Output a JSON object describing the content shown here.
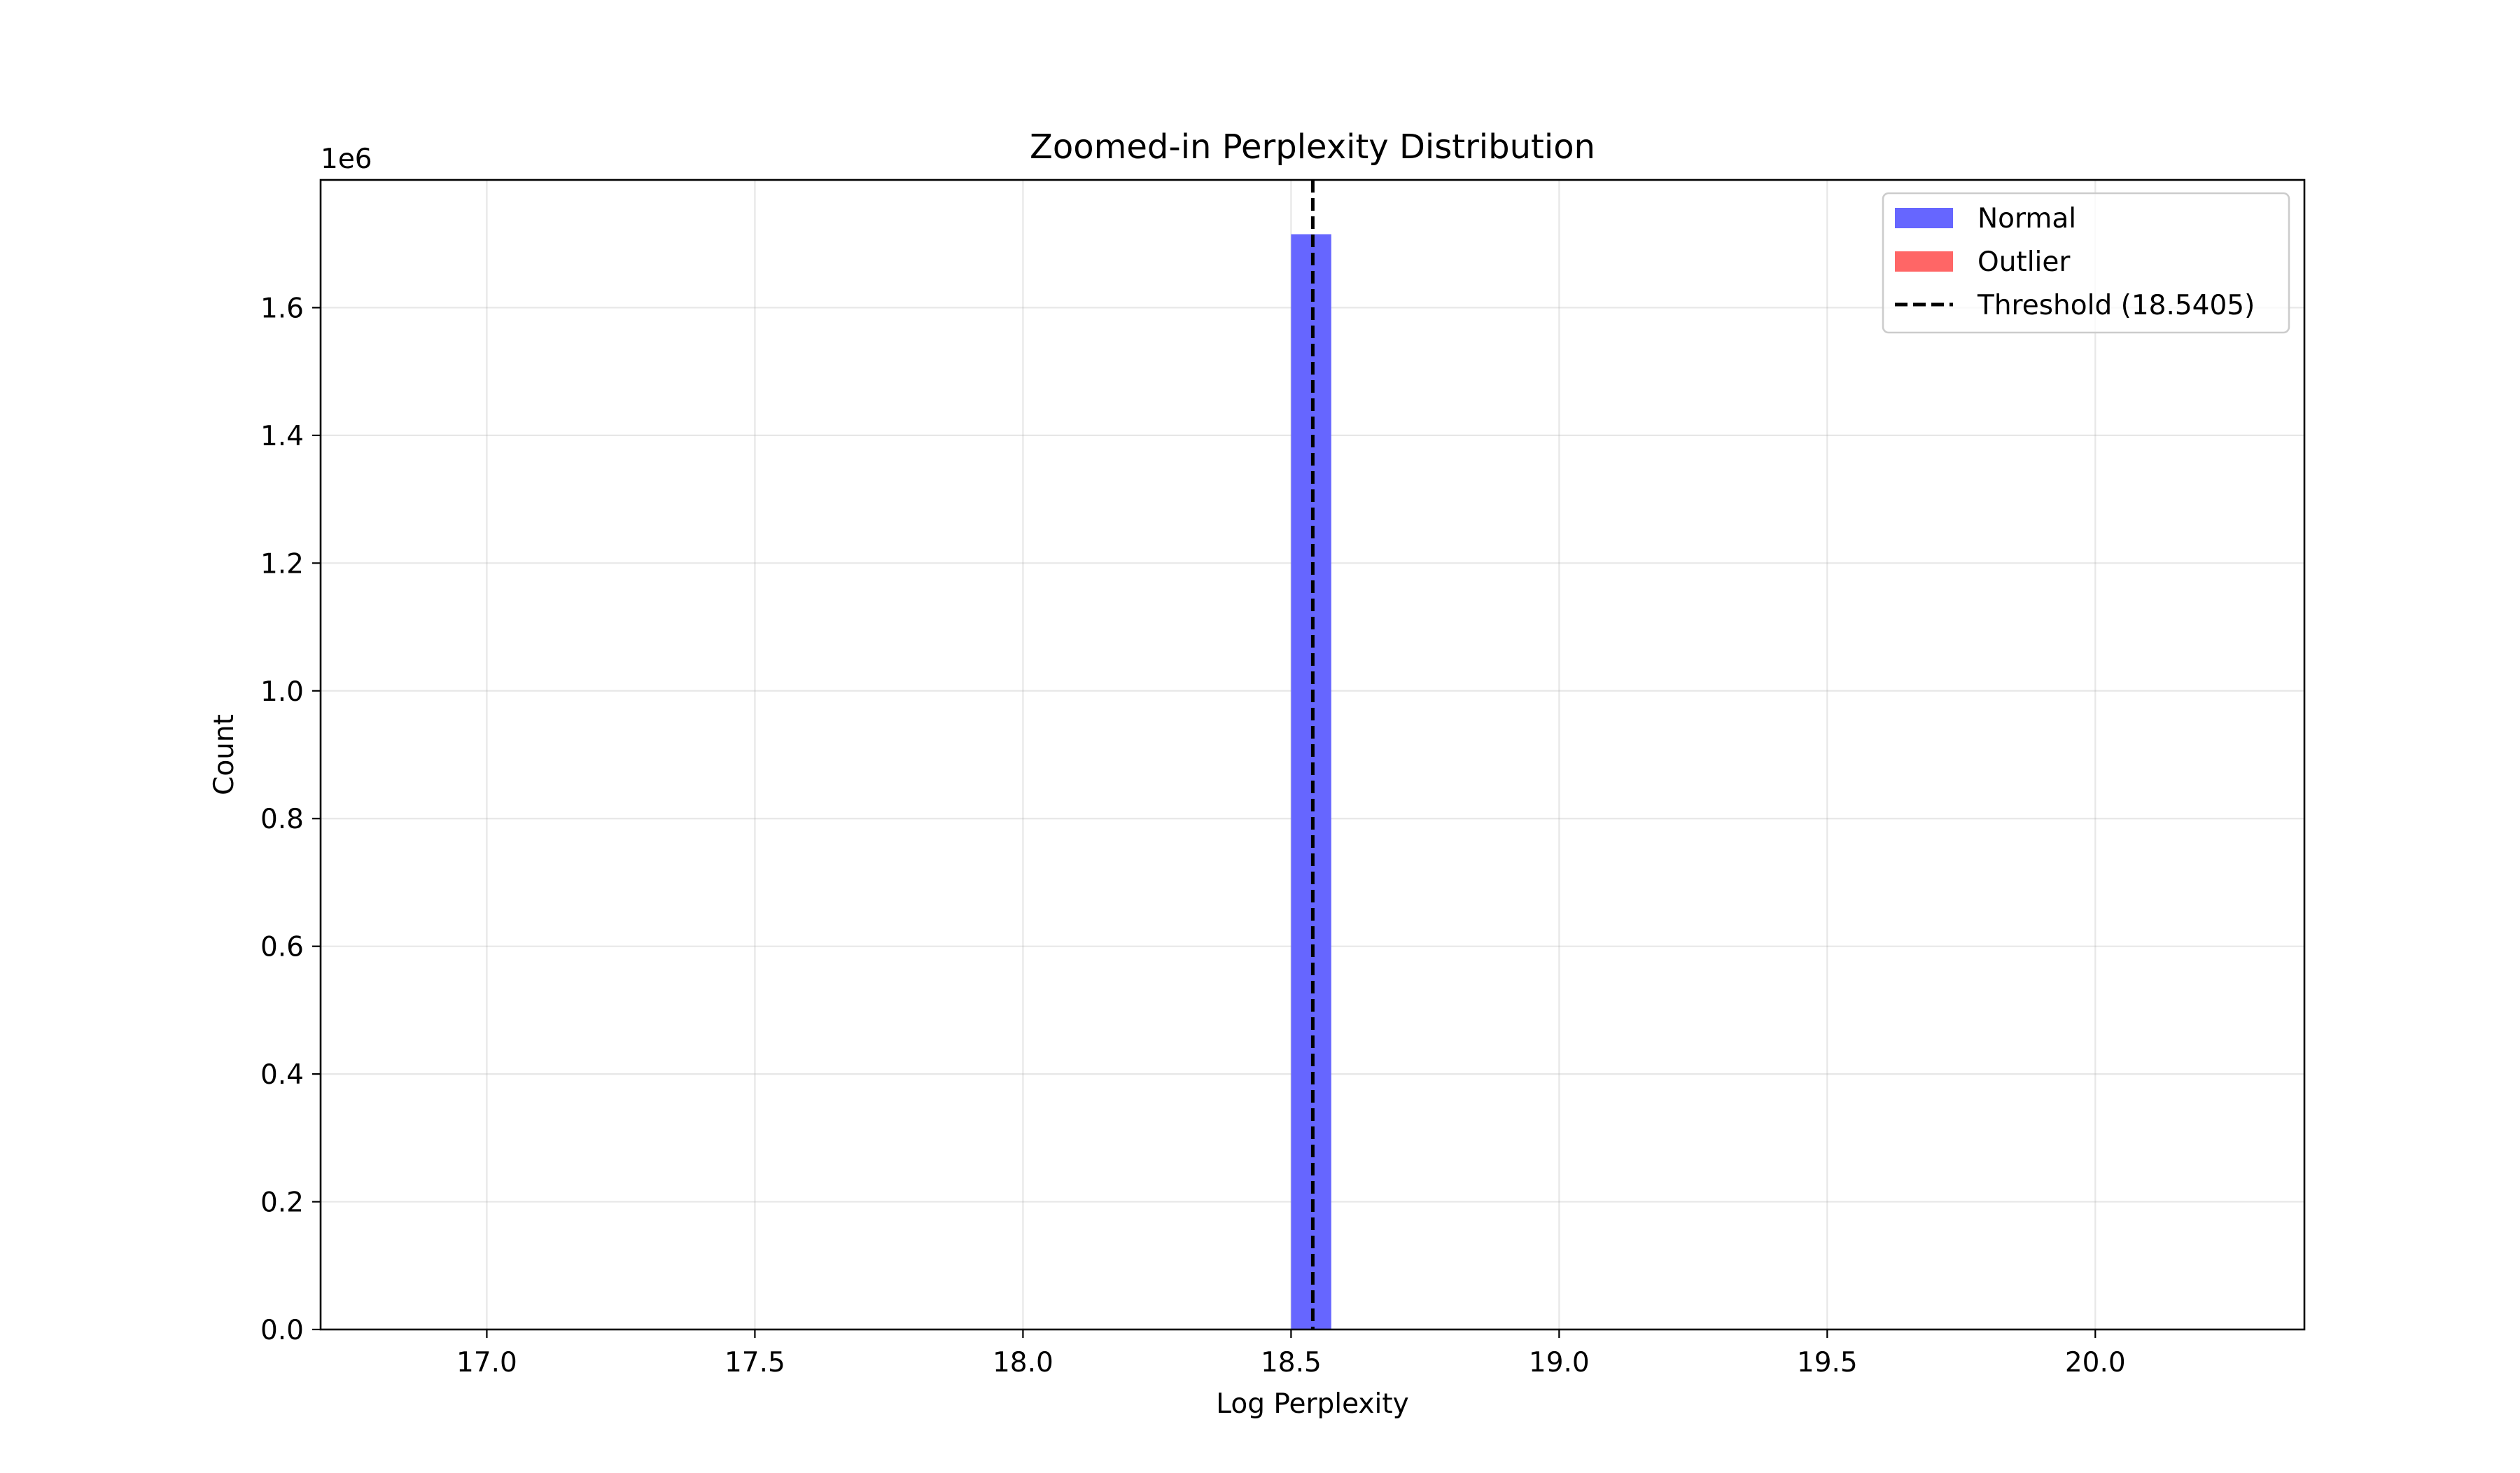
{
  "chart_data": {
    "type": "bar",
    "title": "Zoomed-in Perplexity Distribution",
    "xlabel": "Log Perplexity",
    "ylabel": "Count",
    "y_offset_label": "1e6",
    "xlim": [
      16.69,
      20.39
    ],
    "ylim": [
      0,
      1800000
    ],
    "x_ticks": [
      17.0,
      17.5,
      18.0,
      18.5,
      19.0,
      19.5,
      20.0
    ],
    "x_tick_labels": [
      "17.0",
      "17.5",
      "18.0",
      "18.5",
      "19.0",
      "19.5",
      "20.0"
    ],
    "y_ticks": [
      0,
      200000,
      400000,
      600000,
      800000,
      1000000,
      1200000,
      1400000,
      1600000
    ],
    "y_tick_labels": [
      "0.0",
      "0.2",
      "0.4",
      "0.6",
      "0.8",
      "1.0",
      "1.2",
      "1.4",
      "1.6"
    ],
    "grid": true,
    "legend_position": "top-right",
    "series": [
      {
        "name": "Normal",
        "color": "#6666ff",
        "bins": [
          {
            "x0": 18.5,
            "x1": 18.575,
            "value": 1715000
          }
        ]
      },
      {
        "name": "Outlier",
        "color": "#ff6666",
        "bins": []
      }
    ],
    "threshold": {
      "label": "Threshold (18.5405)",
      "value": 18.5405,
      "color": "#000000",
      "style": "dashed"
    }
  }
}
